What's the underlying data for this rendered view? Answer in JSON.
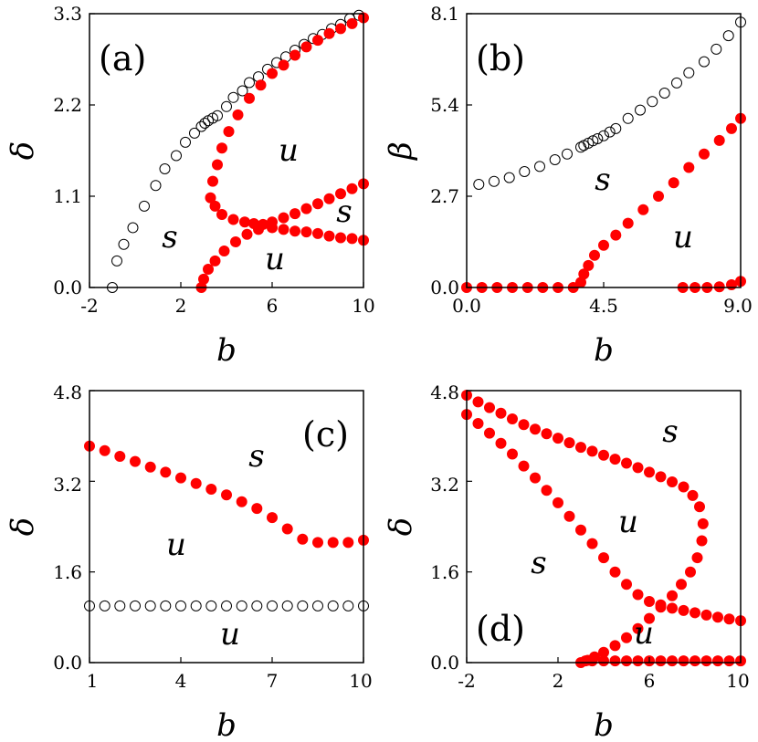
{
  "chart_data": [
    {
      "panel": "(a)",
      "type": "scatter",
      "xlabel": "b",
      "ylabel": "δ",
      "xlim": [
        -2,
        10
      ],
      "ylim": [
        0,
        3.3
      ],
      "xticks": [
        "-2",
        "2",
        "6",
        "10"
      ],
      "yticks": [
        "0.0",
        "1.1",
        "2.2",
        "3.3"
      ],
      "regions": [
        "u",
        "s",
        "s",
        "u"
      ],
      "series": [
        {
          "style": "open",
          "color": "#000000",
          "points": [
            [
              -1.0,
              0.0
            ],
            [
              -0.8,
              0.32
            ],
            [
              -0.5,
              0.52
            ],
            [
              -0.1,
              0.72
            ],
            [
              0.4,
              0.98
            ],
            [
              0.9,
              1.23
            ],
            [
              1.3,
              1.43
            ],
            [
              1.8,
              1.59
            ],
            [
              2.2,
              1.75
            ],
            [
              2.6,
              1.86
            ],
            [
              2.9,
              1.94
            ],
            [
              3.05,
              1.98
            ],
            [
              3.2,
              2.01
            ],
            [
              3.4,
              2.04
            ],
            [
              3.6,
              2.07
            ],
            [
              4.0,
              2.18
            ],
            [
              4.3,
              2.29
            ],
            [
              4.7,
              2.37
            ],
            [
              5.0,
              2.47
            ],
            [
              5.4,
              2.54
            ],
            [
              5.8,
              2.63
            ],
            [
              6.2,
              2.71
            ],
            [
              6.6,
              2.78
            ],
            [
              7.0,
              2.86
            ],
            [
              7.4,
              2.93
            ],
            [
              7.8,
              3.0
            ],
            [
              8.2,
              3.05
            ],
            [
              8.6,
              3.12
            ],
            [
              9.0,
              3.17
            ],
            [
              9.4,
              3.24
            ],
            [
              9.8,
              3.28
            ]
          ]
        },
        {
          "style": "filled",
          "color": "#ff0000",
          "points": [
            [
              3.4,
              1.28
            ],
            [
              3.6,
              1.48
            ],
            [
              3.8,
              1.68
            ],
            [
              4.1,
              1.88
            ],
            [
              4.5,
              2.08
            ],
            [
              5.0,
              2.28
            ],
            [
              5.5,
              2.44
            ],
            [
              6.0,
              2.58
            ],
            [
              6.5,
              2.68
            ],
            [
              7.0,
              2.8
            ],
            [
              7.5,
              2.9
            ],
            [
              8.0,
              2.98
            ],
            [
              8.5,
              3.06
            ],
            [
              9.0,
              3.12
            ],
            [
              9.5,
              3.18
            ],
            [
              10.0,
              3.25
            ]
          ]
        },
        {
          "style": "filled",
          "color": "#ff0000",
          "points": [
            [
              3.3,
              1.08
            ],
            [
              3.5,
              0.98
            ],
            [
              3.8,
              0.88
            ],
            [
              4.3,
              0.82
            ],
            [
              4.8,
              0.79
            ],
            [
              5.2,
              0.77
            ],
            [
              5.6,
              0.76
            ],
            [
              6.0,
              0.79
            ],
            [
              6.5,
              0.84
            ],
            [
              7.0,
              0.89
            ],
            [
              7.5,
              0.95
            ],
            [
              8.0,
              1.01
            ],
            [
              8.5,
              1.07
            ],
            [
              9.0,
              1.13
            ],
            [
              9.5,
              1.19
            ],
            [
              10.0,
              1.25
            ]
          ]
        },
        {
          "style": "filled",
          "color": "#ff0000",
          "points": [
            [
              2.9,
              0.0
            ],
            [
              3.0,
              0.1
            ],
            [
              3.2,
              0.22
            ],
            [
              3.5,
              0.32
            ],
            [
              3.9,
              0.44
            ],
            [
              4.4,
              0.55
            ],
            [
              4.9,
              0.64
            ],
            [
              5.4,
              0.7
            ],
            [
              6.0,
              0.72
            ],
            [
              6.5,
              0.7
            ],
            [
              7.0,
              0.68
            ],
            [
              7.5,
              0.67
            ],
            [
              8.0,
              0.65
            ],
            [
              8.5,
              0.62
            ],
            [
              9.0,
              0.6
            ],
            [
              9.5,
              0.59
            ],
            [
              10.0,
              0.57
            ]
          ]
        }
      ]
    },
    {
      "panel": "(b)",
      "type": "scatter",
      "xlabel": "b",
      "ylabel": "β",
      "xlim": [
        0,
        9
      ],
      "ylim": [
        0,
        8.1
      ],
      "xticks": [
        "0.0",
        "4.5",
        "9.0"
      ],
      "yticks": [
        "0.0",
        "2.7",
        "5.4",
        "8.1"
      ],
      "regions": [
        "s",
        "u"
      ],
      "series": [
        {
          "style": "open",
          "color": "#000000",
          "points": [
            [
              0.4,
              3.05
            ],
            [
              0.9,
              3.14
            ],
            [
              1.4,
              3.25
            ],
            [
              1.9,
              3.43
            ],
            [
              2.4,
              3.58
            ],
            [
              2.9,
              3.78
            ],
            [
              3.3,
              3.95
            ],
            [
              3.75,
              4.15
            ],
            [
              3.85,
              4.2
            ],
            [
              4.0,
              4.27
            ],
            [
              4.15,
              4.34
            ],
            [
              4.3,
              4.4
            ],
            [
              4.5,
              4.49
            ],
            [
              4.7,
              4.6
            ],
            [
              4.9,
              4.7
            ],
            [
              5.3,
              5.0
            ],
            [
              5.7,
              5.25
            ],
            [
              6.1,
              5.5
            ],
            [
              6.5,
              5.75
            ],
            [
              6.9,
              6.05
            ],
            [
              7.3,
              6.35
            ],
            [
              7.8,
              6.68
            ],
            [
              8.2,
              7.05
            ],
            [
              8.6,
              7.45
            ],
            [
              9.0,
              7.85
            ]
          ]
        },
        {
          "style": "filled",
          "color": "#ff0000",
          "points": [
            [
              0.0,
              0.0
            ],
            [
              0.5,
              0.0
            ],
            [
              1.0,
              0.0
            ],
            [
              1.5,
              0.0
            ],
            [
              2.0,
              0.0
            ],
            [
              2.5,
              0.0
            ],
            [
              3.0,
              0.0
            ],
            [
              3.5,
              0.0
            ],
            [
              3.75,
              0.15
            ],
            [
              3.85,
              0.4
            ],
            [
              4.0,
              0.65
            ],
            [
              4.2,
              0.95
            ],
            [
              4.5,
              1.25
            ],
            [
              4.9,
              1.55
            ],
            [
              5.3,
              1.9
            ],
            [
              5.8,
              2.3
            ],
            [
              6.3,
              2.7
            ],
            [
              6.8,
              3.1
            ],
            [
              7.3,
              3.55
            ],
            [
              7.8,
              3.95
            ],
            [
              8.3,
              4.35
            ],
            [
              8.7,
              4.7
            ],
            [
              9.0,
              5.0
            ]
          ]
        },
        {
          "style": "filled",
          "color": "#ff0000",
          "points": [
            [
              7.1,
              0.0
            ],
            [
              7.5,
              0.0
            ],
            [
              7.9,
              0.0
            ],
            [
              8.3,
              0.02
            ],
            [
              8.7,
              0.08
            ],
            [
              9.0,
              0.18
            ]
          ]
        }
      ]
    },
    {
      "panel": "(c)",
      "type": "scatter",
      "xlabel": "b",
      "ylabel": "δ",
      "xlim": [
        1,
        10
      ],
      "ylim": [
        0,
        4.8
      ],
      "xticks": [
        "1",
        "4",
        "7",
        "10"
      ],
      "yticks": [
        "0.0",
        "1.6",
        "3.2",
        "4.8"
      ],
      "regions": [
        "s",
        "u",
        "u"
      ],
      "series": [
        {
          "style": "filled",
          "color": "#ff0000",
          "points": [
            [
              1.0,
              3.82
            ],
            [
              1.5,
              3.74
            ],
            [
              2.0,
              3.64
            ],
            [
              2.5,
              3.55
            ],
            [
              3.0,
              3.45
            ],
            [
              3.5,
              3.36
            ],
            [
              4.0,
              3.26
            ],
            [
              4.5,
              3.16
            ],
            [
              5.0,
              3.06
            ],
            [
              5.5,
              2.96
            ],
            [
              6.0,
              2.84
            ],
            [
              6.5,
              2.72
            ],
            [
              7.0,
              2.56
            ],
            [
              7.5,
              2.36
            ],
            [
              8.0,
              2.18
            ],
            [
              8.5,
              2.12
            ],
            [
              9.0,
              2.12
            ],
            [
              9.5,
              2.12
            ],
            [
              10.0,
              2.16
            ]
          ]
        },
        {
          "style": "open",
          "color": "#000000",
          "points": [
            [
              1.0,
              1.0
            ],
            [
              1.5,
              1.0
            ],
            [
              2.0,
              1.0
            ],
            [
              2.5,
              1.0
            ],
            [
              3.0,
              1.0
            ],
            [
              3.5,
              1.0
            ],
            [
              4.0,
              1.0
            ],
            [
              4.5,
              1.0
            ],
            [
              5.0,
              1.0
            ],
            [
              5.5,
              1.0
            ],
            [
              6.0,
              1.0
            ],
            [
              6.5,
              1.0
            ],
            [
              7.0,
              1.0
            ],
            [
              7.5,
              1.0
            ],
            [
              8.0,
              1.0
            ],
            [
              8.5,
              1.0
            ],
            [
              9.0,
              1.0
            ],
            [
              9.5,
              1.0
            ],
            [
              10.0,
              1.0
            ]
          ]
        }
      ]
    },
    {
      "panel": "(d)",
      "type": "scatter",
      "xlabel": "b",
      "ylabel": "δ",
      "xlim": [
        -2,
        10
      ],
      "ylim": [
        0,
        4.8
      ],
      "xticks": [
        "-2",
        "2",
        "6",
        "10"
      ],
      "yticks": [
        "0.0",
        "1.6",
        "3.2",
        "4.8"
      ],
      "regions": [
        "s",
        "u",
        "s",
        "u"
      ],
      "series": [
        {
          "style": "filled",
          "color": "#ff0000",
          "points": [
            [
              -2.0,
              4.72
            ],
            [
              -1.5,
              4.6
            ],
            [
              -1.0,
              4.5
            ],
            [
              -0.5,
              4.4
            ],
            [
              0.0,
              4.3
            ],
            [
              0.5,
              4.2
            ],
            [
              1.0,
              4.12
            ],
            [
              1.5,
              4.04
            ],
            [
              2.0,
              3.96
            ],
            [
              2.5,
              3.88
            ],
            [
              3.0,
              3.8
            ],
            [
              3.5,
              3.73
            ],
            [
              4.0,
              3.66
            ],
            [
              4.5,
              3.59
            ],
            [
              5.0,
              3.52
            ],
            [
              5.5,
              3.44
            ],
            [
              6.0,
              3.36
            ],
            [
              6.5,
              3.28
            ],
            [
              7.0,
              3.19
            ],
            [
              7.5,
              3.1
            ],
            [
              7.9,
              2.95
            ],
            [
              8.2,
              2.75
            ],
            [
              8.35,
              2.45
            ],
            [
              8.3,
              2.15
            ],
            [
              8.1,
              1.85
            ],
            [
              7.8,
              1.6
            ],
            [
              7.4,
              1.38
            ],
            [
              7.0,
              1.18
            ],
            [
              6.5,
              0.98
            ],
            [
              6.0,
              0.78
            ],
            [
              5.5,
              0.6
            ],
            [
              5.0,
              0.44
            ],
            [
              4.5,
              0.3
            ],
            [
              4.0,
              0.18
            ],
            [
              3.6,
              0.1
            ],
            [
              3.3,
              0.04
            ],
            [
              3.0,
              0.0
            ]
          ]
        },
        {
          "style": "filled",
          "color": "#ff0000",
          "points": [
            [
              -2.0,
              4.38
            ],
            [
              -1.5,
              4.22
            ],
            [
              -1.0,
              4.05
            ],
            [
              -0.5,
              3.87
            ],
            [
              0.0,
              3.68
            ],
            [
              0.5,
              3.47
            ],
            [
              1.0,
              3.26
            ],
            [
              1.5,
              3.04
            ],
            [
              2.0,
              2.82
            ],
            [
              2.5,
              2.58
            ],
            [
              3.0,
              2.34
            ],
            [
              3.5,
              2.1
            ],
            [
              4.0,
              1.85
            ],
            [
              4.5,
              1.6
            ],
            [
              5.0,
              1.38
            ],
            [
              5.5,
              1.2
            ],
            [
              6.0,
              1.08
            ],
            [
              6.5,
              1.02
            ],
            [
              7.0,
              0.96
            ],
            [
              7.5,
              0.92
            ],
            [
              8.0,
              0.88
            ],
            [
              8.5,
              0.84
            ],
            [
              9.0,
              0.8
            ],
            [
              9.5,
              0.77
            ],
            [
              10.0,
              0.74
            ]
          ]
        },
        {
          "style": "filled",
          "color": "#ff0000",
          "points": [
            [
              3.2,
              0.03
            ],
            [
              3.5,
              0.03
            ],
            [
              4.0,
              0.03
            ],
            [
              4.5,
              0.03
            ],
            [
              5.0,
              0.03
            ],
            [
              5.5,
              0.03
            ],
            [
              6.0,
              0.03
            ],
            [
              6.5,
              0.03
            ],
            [
              7.0,
              0.03
            ],
            [
              7.5,
              0.03
            ],
            [
              8.0,
              0.03
            ],
            [
              8.5,
              0.03
            ],
            [
              9.0,
              0.03
            ],
            [
              9.5,
              0.03
            ],
            [
              10.0,
              0.03
            ]
          ]
        }
      ]
    }
  ]
}
